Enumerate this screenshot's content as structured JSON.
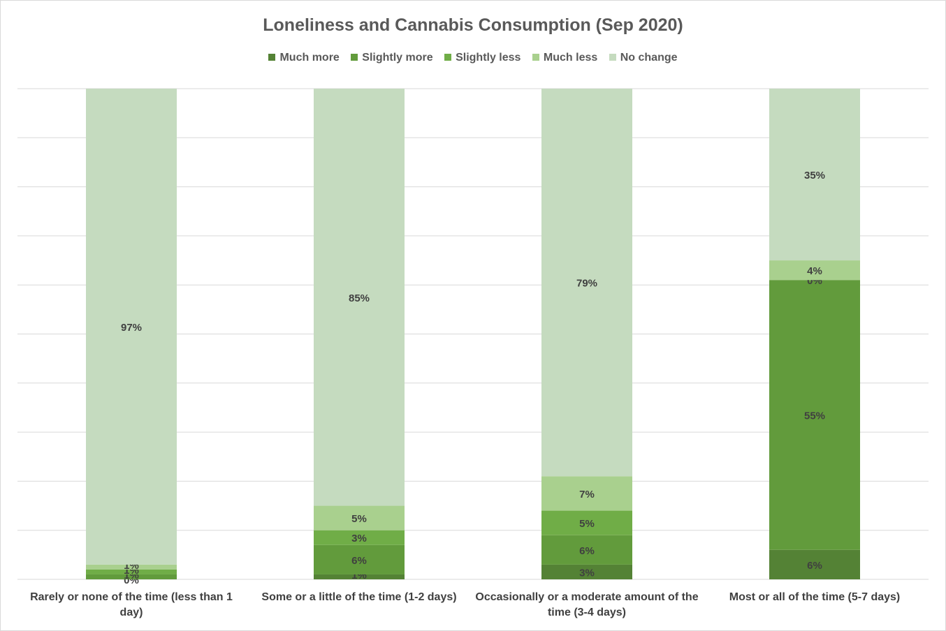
{
  "chart_data": {
    "type": "bar",
    "stacked": true,
    "percent_stacked": true,
    "title": "Loneliness and Cannabis Consumption (Sep 2020)",
    "xlabel": "",
    "ylabel": "",
    "ylim": [
      0,
      100
    ],
    "grid": true,
    "legend_position": "top",
    "categories": [
      "Rarely or none of the time (less than 1 day)",
      "Some or a little of the time (1-2 days)",
      "Occasionally or a moderate amount of the time (3-4 days)",
      "Most or all of the time (5-7 days)"
    ],
    "series": [
      {
        "name": "Much more",
        "color": "#548235",
        "values": [
          0,
          1,
          3,
          6
        ],
        "labels": [
          "0%",
          "1%",
          "3%",
          "6%"
        ]
      },
      {
        "name": "Slightly more",
        "color": "#629b3c",
        "values": [
          1,
          6,
          6,
          55
        ],
        "labels": [
          "1%",
          "6%",
          "6%",
          "55%"
        ]
      },
      {
        "name": "Slightly less",
        "color": "#70ad47",
        "values": [
          1,
          3,
          5,
          0
        ],
        "labels": [
          "1%",
          "3%",
          "5%",
          "0%"
        ]
      },
      {
        "name": "Much less",
        "color": "#a9d08e",
        "values": [
          1,
          5,
          7,
          4
        ],
        "labels": [
          "1%",
          "5%",
          "7%",
          "4%"
        ]
      },
      {
        "name": "No change",
        "color": "#c5dbbf",
        "values": [
          97,
          85,
          79,
          35
        ],
        "labels": [
          "97%",
          "85%",
          "79%",
          "35%"
        ]
      }
    ]
  },
  "legend_colors": {
    "much_more": "#548235",
    "slightly_more": "#629b3c",
    "slightly_less": "#70ad47",
    "much_less": "#a9d08e",
    "no_change": "#c5dbbf"
  }
}
